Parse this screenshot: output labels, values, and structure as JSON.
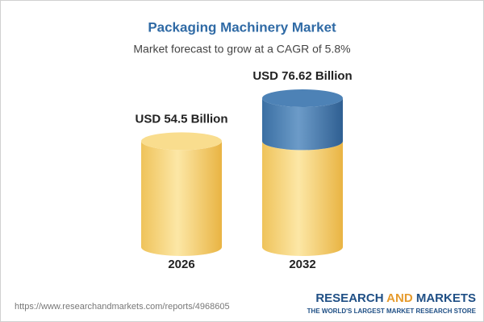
{
  "chart_data": {
    "type": "cylinder",
    "title": "Packaging Machinery Market",
    "subtitle": "Market forecast to grow at a CAGR of 5.8%",
    "categories": [
      "2026",
      "2032"
    ],
    "values": [
      54.5,
      76.62
    ],
    "value_labels": [
      "USD 54.5 Billion",
      "USD 76.62 Billion"
    ],
    "color": "#f5cf6a",
    "growth_color": "#3f78ad",
    "source": "https://www.researchandmarkets.com/reports/4968605",
    "logo": [
      "RESEARCH",
      "AND",
      "MARKETS"
    ],
    "tagline": "THE WORLD'S LARGEST MARKET RESEARCH STORE"
  }
}
